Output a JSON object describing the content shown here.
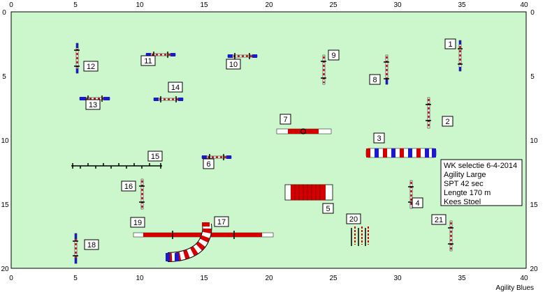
{
  "course": {
    "x_range": [
      0,
      40
    ],
    "y_range": [
      0,
      20
    ],
    "x_ticks": [
      "0",
      "5",
      "10",
      "15",
      "20",
      "25",
      "30",
      "35",
      "40"
    ],
    "y_ticks": [
      "0",
      "5",
      "10",
      "15",
      "20"
    ],
    "field_color": "#ccf7cc",
    "grid": false
  },
  "info_box": {
    "line1": "WK selectie 6-4-2014",
    "line2": "Agility Large",
    "line3": "SPT 42 sec",
    "line4": "Lengte 170 m",
    "line5": "Kees Stoel"
  },
  "footer": "Agility Blues",
  "obstacles": [
    {
      "number": "1",
      "type": "jump",
      "x": 35.2,
      "y": 3.2,
      "orientation": "vertical"
    },
    {
      "number": "2",
      "type": "jump",
      "x": 32.5,
      "y": 7.9,
      "orientation": "vertical"
    },
    {
      "number": "3",
      "type": "tunnel",
      "x": 29.5,
      "y": 11.0,
      "orientation": "horizontal"
    },
    {
      "number": "4",
      "type": "jump",
      "x": 31.2,
      "y": 14.2,
      "orientation": "vertical"
    },
    {
      "number": "5",
      "type": "a-frame",
      "x": 23.0,
      "y": 14.0,
      "orientation": "horizontal"
    },
    {
      "number": "6",
      "type": "jump",
      "x": 16.3,
      "y": 11.3,
      "orientation": "horizontal"
    },
    {
      "number": "7",
      "type": "tire",
      "x": 23.0,
      "y": 9.3,
      "orientation": "horizontal"
    },
    {
      "number": "8",
      "type": "jump",
      "x": 29.3,
      "y": 4.4,
      "orientation": "vertical"
    },
    {
      "number": "9",
      "type": "jump",
      "x": 24.3,
      "y": 4.2,
      "orientation": "vertical"
    },
    {
      "number": "10",
      "type": "jump",
      "x": 17.3,
      "y": 3.4,
      "orientation": "horizontal"
    },
    {
      "number": "11",
      "type": "jump",
      "x": 11.1,
      "y": 3.4,
      "orientation": "horizontal"
    },
    {
      "number": "12",
      "type": "jump",
      "x": 5.0,
      "y": 3.5,
      "orientation": "vertical"
    },
    {
      "number": "13",
      "type": "jump",
      "x": 6.4,
      "y": 6.7,
      "orientation": "horizontal"
    },
    {
      "number": "14",
      "type": "jump",
      "x": 11.0,
      "y": 6.8,
      "orientation": "horizontal"
    },
    {
      "number": "15",
      "type": "weave-poles",
      "x": 8.6,
      "y": 12.0,
      "orientation": "horizontal"
    },
    {
      "number": "16",
      "type": "jump",
      "x": 10.2,
      "y": 14.1,
      "orientation": "vertical"
    },
    {
      "number": "17",
      "type": "dog-walk",
      "x": 16.0,
      "y": 17.3,
      "orientation": "horizontal"
    },
    {
      "number": "18",
      "type": "jump",
      "x": 5.0,
      "y": 17.8,
      "orientation": "vertical"
    },
    {
      "number": "19",
      "type": "curved-tunnel",
      "x": 12.5,
      "y": 18.5,
      "orientation": "curved"
    },
    {
      "number": "20",
      "type": "wall",
      "x": 27.5,
      "y": 17.3,
      "orientation": "horizontal"
    },
    {
      "number": "21",
      "type": "jump",
      "x": 34.3,
      "y": 17.1,
      "orientation": "vertical"
    }
  ]
}
